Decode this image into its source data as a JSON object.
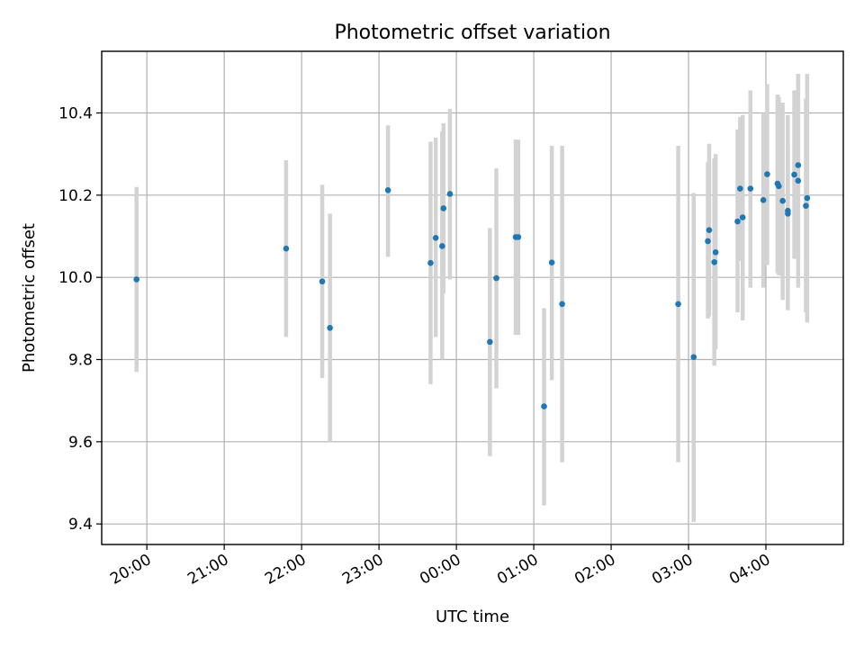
{
  "chart_data": {
    "type": "scatter",
    "title": "Photometric offset variation",
    "xlabel": "UTC time",
    "ylabel": "Photometric offset",
    "x_axis": {
      "type": "time",
      "start": "19:25",
      "end": "05:00",
      "tick_labels": [
        "20:00",
        "21:00",
        "22:00",
        "23:00",
        "00:00",
        "01:00",
        "02:00",
        "03:00",
        "04:00"
      ]
    },
    "ylim": [
      9.35,
      10.55
    ],
    "y_ticks": [
      9.4,
      9.6,
      9.8,
      10.0,
      10.2,
      10.4
    ],
    "y_tick_labels": [
      "9.4",
      "9.6",
      "9.8",
      "10.0",
      "10.2",
      "10.4"
    ],
    "grid": true,
    "point_color": "#1f77b4",
    "errorbar_color": "#d3d3d3",
    "points": [
      {
        "t": "19:52",
        "y": 9.995,
        "lo": 9.77,
        "hi": 10.22
      },
      {
        "t": "21:48",
        "y": 10.07,
        "lo": 9.855,
        "hi": 10.285
      },
      {
        "t": "22:16",
        "y": 9.99,
        "lo": 9.755,
        "hi": 10.225
      },
      {
        "t": "22:22",
        "y": 9.877,
        "lo": 9.6,
        "hi": 10.155
      },
      {
        "t": "23:07",
        "y": 10.212,
        "lo": 10.05,
        "hi": 10.37
      },
      {
        "t": "23:40",
        "y": 10.035,
        "lo": 9.74,
        "hi": 10.33
      },
      {
        "t": "23:44",
        "y": 10.096,
        "lo": 9.855,
        "hi": 10.34
      },
      {
        "t": "23:49",
        "y": 10.076,
        "lo": 9.8,
        "hi": 10.355
      },
      {
        "t": "23:50",
        "y": 10.168,
        "lo": 9.96,
        "hi": 10.375
      },
      {
        "t": "23:55",
        "y": 10.203,
        "lo": 9.995,
        "hi": 10.41
      },
      {
        "t": "00:26",
        "y": 9.843,
        "lo": 9.565,
        "hi": 10.12
      },
      {
        "t": "00:31",
        "y": 9.998,
        "lo": 9.73,
        "hi": 10.265
      },
      {
        "t": "00:46",
        "y": 10.098,
        "lo": 9.86,
        "hi": 10.335
      },
      {
        "t": "00:48",
        "y": 10.098,
        "lo": 9.86,
        "hi": 10.335
      },
      {
        "t": "01:08",
        "y": 9.686,
        "lo": 9.445,
        "hi": 9.925
      },
      {
        "t": "01:14",
        "y": 10.036,
        "lo": 9.75,
        "hi": 10.32
      },
      {
        "t": "01:22",
        "y": 9.935,
        "lo": 9.55,
        "hi": 10.32
      },
      {
        "t": "02:52",
        "y": 9.935,
        "lo": 9.55,
        "hi": 10.32
      },
      {
        "t": "03:04",
        "y": 9.806,
        "lo": 9.405,
        "hi": 10.205
      },
      {
        "t": "03:15",
        "y": 10.088,
        "lo": 9.9,
        "hi": 10.28
      },
      {
        "t": "03:16",
        "y": 10.115,
        "lo": 9.905,
        "hi": 10.325
      },
      {
        "t": "03:20",
        "y": 10.037,
        "lo": 9.785,
        "hi": 10.29
      },
      {
        "t": "03:21",
        "y": 10.061,
        "lo": 9.825,
        "hi": 10.3
      },
      {
        "t": "03:38",
        "y": 10.136,
        "lo": 9.915,
        "hi": 10.36
      },
      {
        "t": "03:40",
        "y": 10.216,
        "lo": 10.04,
        "hi": 10.39
      },
      {
        "t": "03:42",
        "y": 10.146,
        "lo": 9.895,
        "hi": 10.395
      },
      {
        "t": "03:48",
        "y": 10.216,
        "lo": 9.975,
        "hi": 10.455
      },
      {
        "t": "03:58",
        "y": 10.188,
        "lo": 9.975,
        "hi": 10.4
      },
      {
        "t": "04:01",
        "y": 10.251,
        "lo": 10.03,
        "hi": 10.47
      },
      {
        "t": "04:09",
        "y": 10.228,
        "lo": 10.01,
        "hi": 10.445
      },
      {
        "t": "04:10",
        "y": 10.222,
        "lo": 10.005,
        "hi": 10.44
      },
      {
        "t": "04:13",
        "y": 10.186,
        "lo": 9.945,
        "hi": 10.425
      },
      {
        "t": "04:17",
        "y": 10.162,
        "lo": 9.92,
        "hi": 10.395
      },
      {
        "t": "04:17",
        "y": 10.155,
        "lo": 9.99,
        "hi": 10.32
      },
      {
        "t": "04:22",
        "y": 10.25,
        "lo": 10.045,
        "hi": 10.455
      },
      {
        "t": "04:25",
        "y": 10.235,
        "lo": 9.975,
        "hi": 10.495
      },
      {
        "t": "04:25",
        "y": 10.273,
        "lo": 10.05,
        "hi": 10.495
      },
      {
        "t": "04:31",
        "y": 10.174,
        "lo": 9.915,
        "hi": 10.435
      },
      {
        "t": "04:32",
        "y": 10.193,
        "lo": 9.89,
        "hi": 10.495
      }
    ]
  }
}
